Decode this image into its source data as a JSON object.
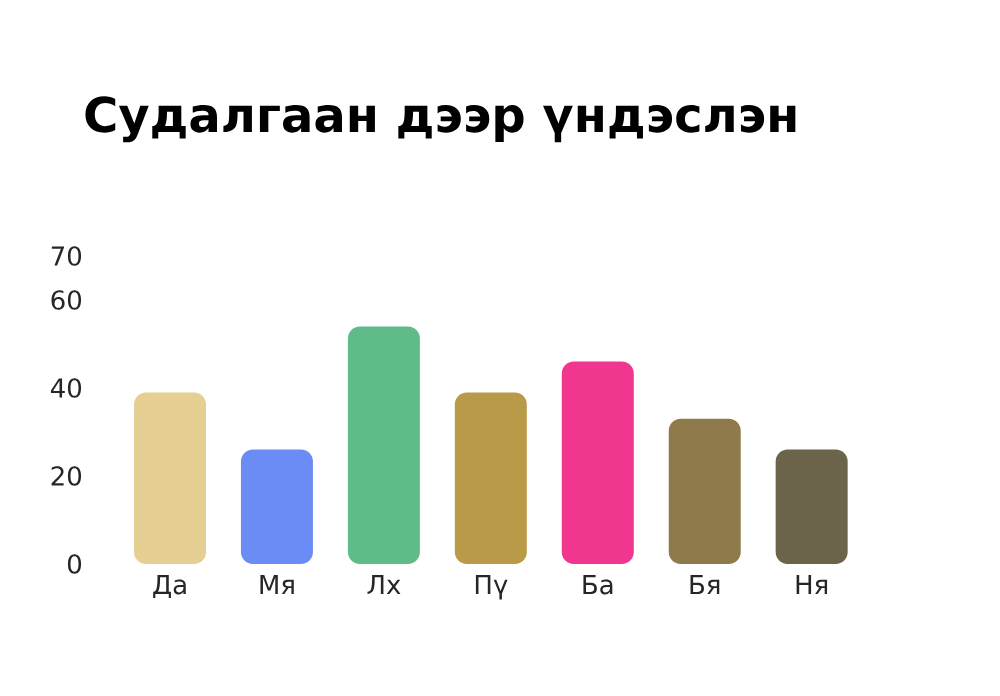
{
  "chart_data": {
    "type": "bar",
    "title": "Судалгаан дээр үндэслэн",
    "categories": [
      "Да",
      "Мя",
      "Лх",
      "Пү",
      "Ба",
      "Бя",
      "Ня"
    ],
    "values": [
      39,
      26,
      54,
      39,
      46,
      33,
      26
    ],
    "colors": [
      "#e5cf93",
      "#6b8cf5",
      "#5fbb8a",
      "#b99a48",
      "#f0368e",
      "#8e7a4a",
      "#6b634a"
    ],
    "ylim": [
      0,
      70
    ],
    "yticks": [
      0,
      20,
      40,
      60,
      70
    ]
  }
}
